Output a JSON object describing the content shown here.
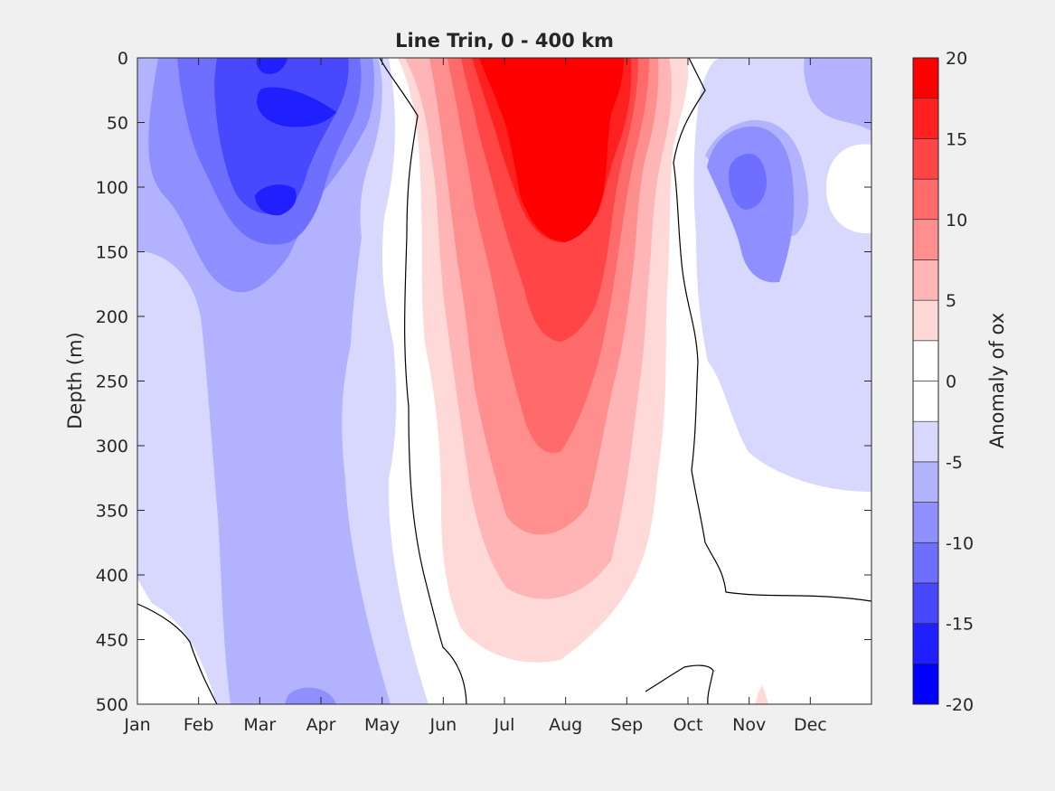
{
  "chart_data": {
    "type": "heatmap",
    "title": "Line Trin, 0 - 400 km",
    "ylabel": "Depth (m)",
    "xlabel": "",
    "x_categories": [
      "Jan",
      "Feb",
      "Mar",
      "Apr",
      "May",
      "Jun",
      "Jul",
      "Aug",
      "Sep",
      "Oct",
      "Nov",
      "Dec"
    ],
    "xlim": [
      1,
      13
    ],
    "ylim": [
      0,
      500
    ],
    "y_reversed": true,
    "y_ticks": [
      0,
      50,
      100,
      150,
      200,
      250,
      300,
      350,
      400,
      450,
      500
    ],
    "colorbar": {
      "label": "Anomaly of ox",
      "range": [
        -20,
        20
      ],
      "ticks": [
        20,
        15,
        10,
        5,
        0,
        -5,
        -10,
        -15,
        -20
      ],
      "level_step": 2.5,
      "colors": [
        "#0000ff",
        "#2020ff",
        "#4848ff",
        "#6f6fff",
        "#8f8fff",
        "#b2b2ff",
        "#d8d8ff",
        "#ffffff",
        "#ffffff",
        "#ffd8d8",
        "#ffb5b5",
        "#ff8f8f",
        "#ff6a6a",
        "#ff4545",
        "#ff2020",
        "#ff0000"
      ]
    },
    "zero_contour_color": "#000000",
    "anomaly_features": [
      {
        "label": "surface negative core",
        "month": 3.9,
        "depth": 40,
        "value": -14
      },
      {
        "label": "subsurface negative core",
        "month": 3.3,
        "depth": 110,
        "value": -14
      },
      {
        "label": "summer positive core",
        "month": 7.7,
        "depth": 100,
        "value": 19
      },
      {
        "label": "autumn negative core",
        "month": 11.0,
        "depth": 100,
        "value": -10
      },
      {
        "label": "Jan mid-depth",
        "month": 1.2,
        "depth": 100,
        "value": 0
      },
      {
        "label": "Dec mid-depth",
        "month": 12.7,
        "depth": 100,
        "value": 0
      },
      {
        "label": "Dec deep positive",
        "month": 12.6,
        "depth": 480,
        "value": 6
      },
      {
        "label": "Jan deep positive",
        "month": 1.1,
        "depth": 490,
        "value": 3
      }
    ]
  }
}
